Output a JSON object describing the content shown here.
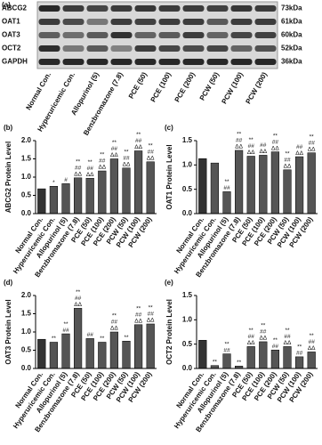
{
  "blot": {
    "panel_label": "(a)",
    "rows": [
      {
        "protein": "ABCG2",
        "size": "73kDa"
      },
      {
        "protein": "OAT1",
        "size": "61kDa"
      },
      {
        "protein": "OAT3",
        "size": "60kDa"
      },
      {
        "protein": "OCT2",
        "size": "52kDa"
      },
      {
        "protein": "GAPDH",
        "size": "36kDa"
      }
    ],
    "lanes": [
      "Normal Con.",
      "Hyperuricemic Con.",
      "Allopurinol (5)",
      "Benzbromazone (7.8)",
      "PCE (50)",
      "PCE (100)",
      "PCE (200)",
      "PCW (50)",
      "PCW (100)",
      "PCW (200)"
    ]
  },
  "chart_data": [
    {
      "type": "bar",
      "panel_label": "(b)",
      "y_label": "ABCG2 Protein Level",
      "color": "#555555",
      "categories": [
        "Normal Con.",
        "Hyperuricemic Con.",
        "Allopurinol (5)",
        "Benzbromazone (7.8)",
        "PCE (50)",
        "PCE (100)",
        "PCE (200)",
        "PCW (50)",
        "PCW (100)",
        "PCW (200)"
      ],
      "values": [
        0.68,
        0.75,
        0.82,
        0.98,
        0.97,
        1.17,
        1.5,
        1.25,
        1.72,
        1.42
      ],
      "annotations": [
        [],
        [
          "*"
        ],
        [
          "#"
        ],
        [
          "**",
          "##",
          "ΔΔ"
        ],
        [
          "**",
          "##",
          "ΔΔ"
        ],
        [
          "**",
          "##",
          "ΔΔ"
        ],
        [
          "**",
          "##",
          "ΔΔ"
        ],
        [
          "**",
          "##",
          "ΔΔ"
        ],
        [
          "**",
          "##",
          "ΔΔ"
        ],
        [
          "**",
          "##",
          "ΔΔ"
        ]
      ],
      "ylim": [
        0,
        2
      ],
      "yticks": [
        {
          "value": 0,
          "label": "0.0"
        },
        0.5,
        {
          "value": 1,
          "label": "1.0"
        },
        1.5,
        {
          "value": 2,
          "label": "2.0"
        }
      ]
    },
    {
      "type": "bar",
      "panel_label": "(c)",
      "y_label": "OAT1 Protein Level",
      "color": "#555555",
      "categories": [
        "Normal Con.",
        "Hyperuricemic Con.",
        "Allopurinol (5)",
        "Benzbromazone (7.8)",
        "PCE (50)",
        "PCE (100)",
        "PCE (200)",
        "PCW (50)",
        "PCW (100)",
        "PCW (200)"
      ],
      "values": [
        1.13,
        1.04,
        0.45,
        1.3,
        1.18,
        1.2,
        1.27,
        0.9,
        1.17,
        1.25
      ],
      "annotations": [
        [],
        [],
        [
          "**",
          "##"
        ],
        [
          "**",
          "##",
          "ΔΔ"
        ],
        [
          "**",
          "##",
          "ΔΔ"
        ],
        [
          "##",
          "ΔΔ"
        ],
        [
          "**",
          "##",
          "ΔΔ"
        ],
        [
          "**",
          "##",
          "ΔΔ"
        ],
        [
          "##",
          "ΔΔ"
        ],
        [
          "**",
          "##",
          "ΔΔ"
        ]
      ],
      "ylim": [
        0,
        1.5
      ],
      "yticks": [
        {
          "value": 0,
          "label": "0.0"
        },
        0.5,
        {
          "value": 1,
          "label": "1.0"
        },
        1.5
      ]
    },
    {
      "type": "bar",
      "panel_label": "(d)",
      "y_label": "OAT3 Protein Level",
      "color": "#555555",
      "categories": [
        "Normal Con.",
        "Hyperuricemic Con.",
        "Allopurinol (5)",
        "Benzbromazone (7.8)",
        "PCE (50)",
        "PCE (100)",
        "PCE (200)",
        "PCW (50)",
        "PCW (100)",
        "PCW (200)"
      ],
      "values": [
        0.8,
        0.72,
        0.95,
        1.65,
        0.82,
        0.72,
        1.0,
        0.75,
        1.2,
        1.22
      ],
      "annotations": [
        [],
        [
          "**"
        ],
        [
          "**",
          "##"
        ],
        [
          "**",
          "##",
          "ΔΔ"
        ],
        [
          "##"
        ],
        [
          "**"
        ],
        [
          "**",
          "##",
          "ΔΔ"
        ],
        [
          "**"
        ],
        [
          "**",
          "##",
          "ΔΔ"
        ],
        [
          "**",
          "##",
          "ΔΔ"
        ]
      ],
      "ylim": [
        0,
        2
      ],
      "yticks": [
        {
          "value": 0,
          "label": "0.0"
        },
        0.5,
        {
          "value": 1,
          "label": "1.0"
        },
        1.5,
        {
          "value": 2,
          "label": "2.0"
        }
      ]
    },
    {
      "type": "bar",
      "panel_label": "(e)",
      "y_label": "OCT2 Protein Level",
      "color": "#555555",
      "categories": [
        "Normal Con.",
        "Hyperuricemic Con.",
        "Allopurinol (5)",
        "Benzbromazone (7.8)",
        "PCE (50)",
        "PCE (100)",
        "PCE (200)",
        "PCW (50)",
        "PCW (100)",
        "PCW (200)"
      ],
      "values": [
        0.58,
        0.06,
        0.3,
        0.05,
        0.45,
        0.55,
        0.38,
        0.45,
        0.24,
        0.34
      ],
      "annotations": [
        [],
        [
          "**"
        ],
        [
          "**",
          "##"
        ],
        [
          "**"
        ],
        [
          "**",
          "##",
          "ΔΔ"
        ],
        [
          "**",
          "##",
          "ΔΔ"
        ],
        [
          "**",
          "##"
        ],
        [
          "**",
          "##",
          "ΔΔ"
        ],
        [
          "**",
          "##"
        ],
        [
          "**",
          "##",
          "ΔΔ"
        ]
      ],
      "ylim": [
        0,
        1.5
      ],
      "yticks": [
        {
          "value": 0,
          "label": "0.0"
        },
        0.5,
        {
          "value": 1,
          "label": "1.0"
        },
        1.5
      ]
    }
  ]
}
